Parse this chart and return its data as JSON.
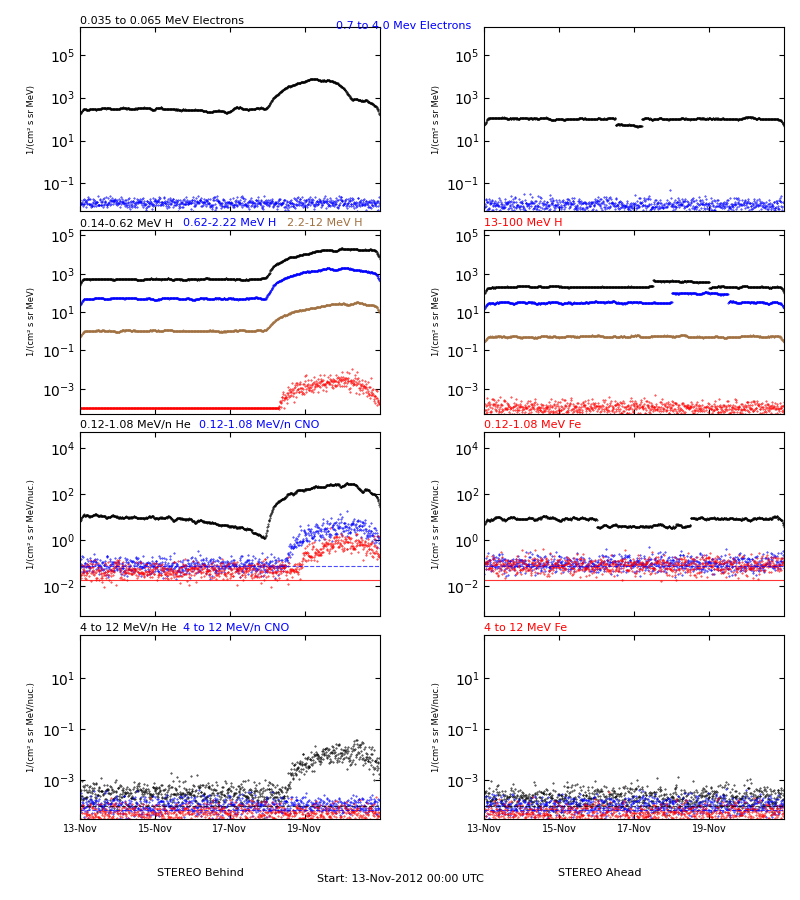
{
  "title_left": "0.035 to 0.065 MeV Electrons",
  "title_right_1": "0.7 to 4.0 Mev Electrons",
  "title_row2_left": "0.14-0.62 MeV H",
  "title_row2_blue": "0.62-2.22 MeV H",
  "title_row2_brown": "2.2-12 MeV H",
  "title_row2_red": "13-100 MeV H",
  "title_row3_left": "0.12-1.08 MeV/n He",
  "title_row3_blue": "0.12-1.08 MeV/n CNO",
  "title_row3_red": "0.12-1.08 MeV Fe",
  "title_row4_left": "4 to 12 MeV/n He",
  "title_row4_blue": "4 to 12 MeV/n CNO",
  "title_row4_red": "4 to 12 MeV Fe",
  "xlabel_left": "STEREO Behind",
  "xlabel_center": "Start: 13-Nov-2012 00:00 UTC",
  "xlabel_right": "STEREO Ahead",
  "ylabel_electrons": "1/(cm² s sr MeV)",
  "ylabel_ions": "1/(cm² s sr MeV)",
  "ylabel_heavy": "1/(cm² s sr MeV/nuc.)",
  "start_date": "13-Nov-2012",
  "xtick_labels": [
    "13-Nov",
    "15-Nov",
    "17-Nov",
    "19-Nov"
  ],
  "n_days": 8,
  "background_color": "#ffffff",
  "colors": {
    "black": "#000000",
    "blue": "#0000ff",
    "brown": "#a07040",
    "red": "#ff0000"
  }
}
